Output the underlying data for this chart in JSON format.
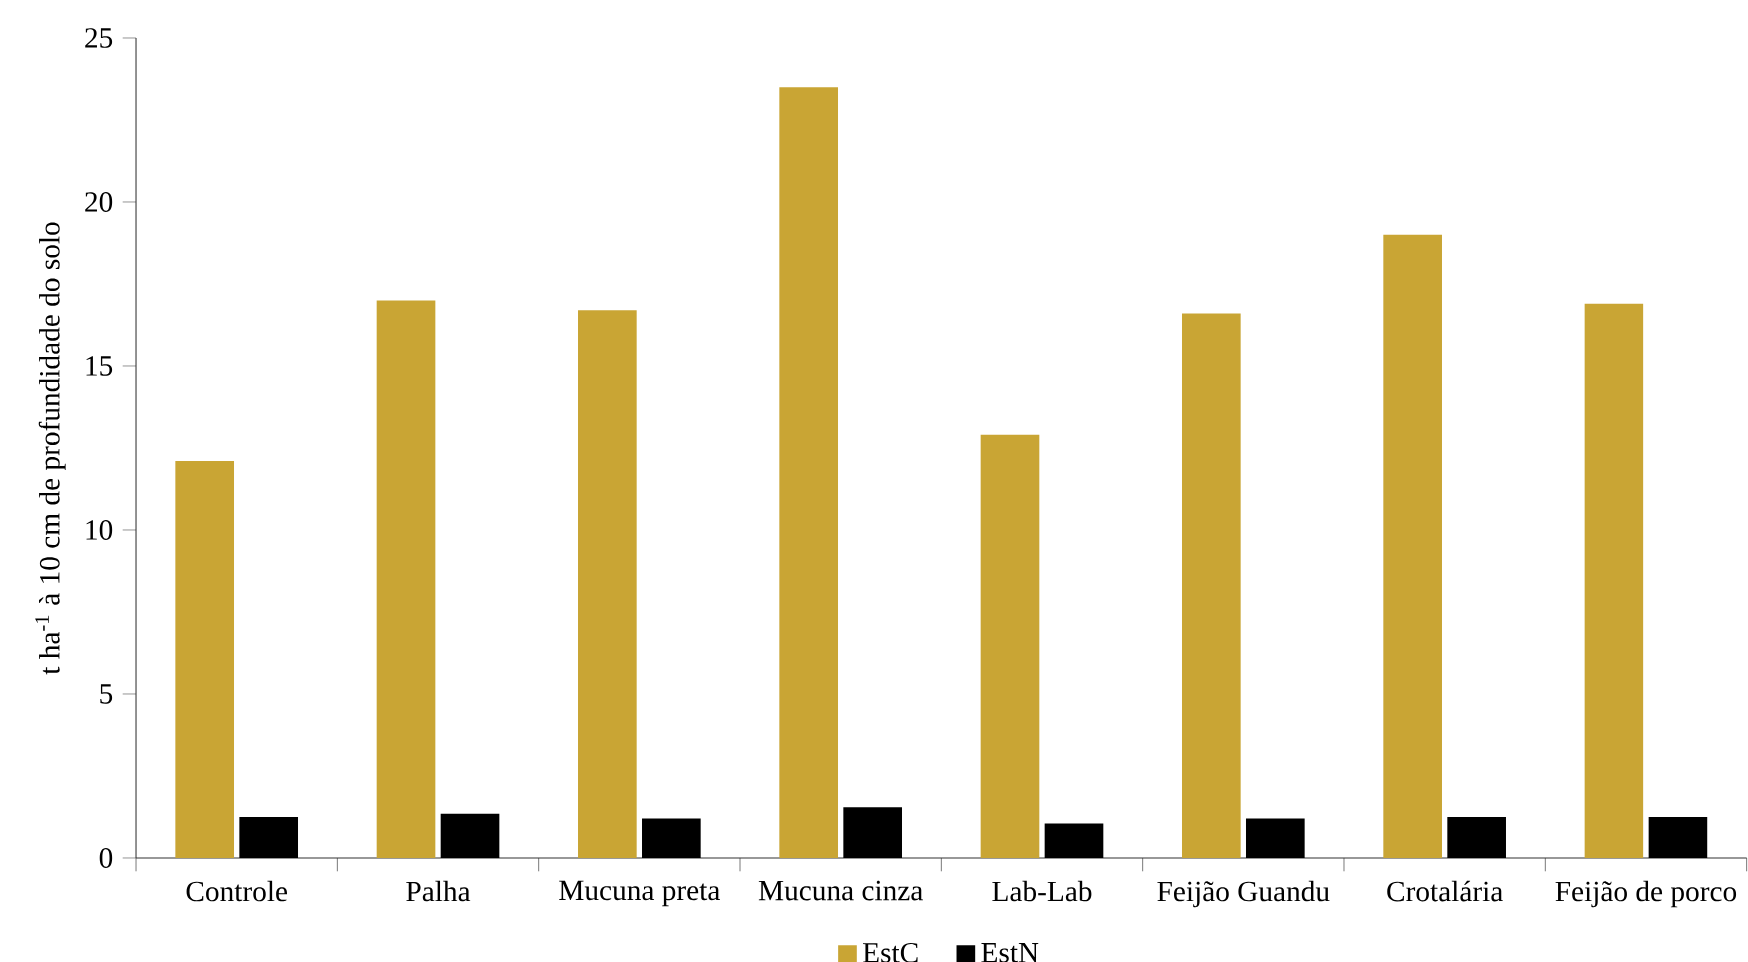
{
  "chart_data": {
    "type": "bar",
    "ylabel": "t ha$^{-1}$ à 10 cm de profundidade do solo",
    "categories": [
      "Controle",
      "Palha",
      "Mucuna preta",
      "Mucuna cinza",
      "Lab-Lab",
      "Feijão Guandu",
      "Crotalária",
      "Feijão de porco"
    ],
    "series": [
      {
        "name": "EstC",
        "color": "#c9a534",
        "values": [
          12.1,
          17.0,
          16.7,
          23.5,
          12.9,
          16.6,
          19.0,
          16.9
        ]
      },
      {
        "name": "EstN",
        "color": "#000000",
        "values": [
          1.25,
          1.35,
          1.2,
          1.55,
          1.05,
          1.2,
          1.25,
          1.25
        ]
      }
    ],
    "ylim": [
      0,
      25
    ],
    "yticks": [
      0,
      5,
      10,
      15,
      20,
      25
    ],
    "legend": "bottom",
    "grid": false
  }
}
